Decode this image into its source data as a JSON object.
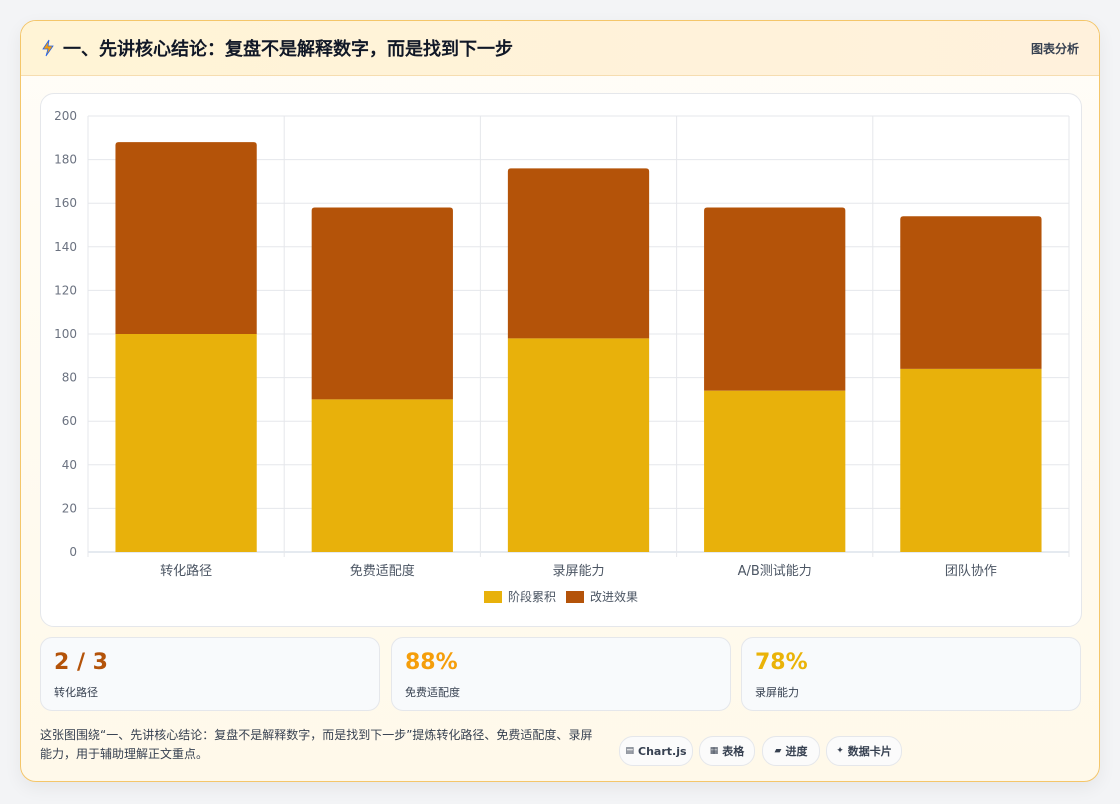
{
  "header": {
    "title": "一、先讲核心结论：复盘不是解释数字，而是找到下一步",
    "tag": "图表分析"
  },
  "chart_data": {
    "type": "bar",
    "stacked": true,
    "categories": [
      "转化路径",
      "免费适配度",
      "录屏能力",
      "A/B测试能力",
      "团队协作"
    ],
    "series": [
      {
        "name": "阶段累积",
        "values": [
          100,
          70,
          98,
          74,
          84
        ],
        "color": "#e8b10b"
      },
      {
        "name": "改进效果",
        "values": [
          88,
          88,
          78,
          84,
          70
        ],
        "color": "#b45309"
      }
    ],
    "ylim": [
      0,
      200
    ],
    "yticks": [
      0,
      20,
      40,
      60,
      80,
      100,
      120,
      140,
      160,
      180,
      200
    ],
    "grid": true,
    "legend": "bottom"
  },
  "stats": [
    {
      "value": "2 / 3",
      "label": "转化路径",
      "color": "#b45309"
    },
    {
      "value": "88%",
      "label": "免费适配度",
      "color": "#f59e0b"
    },
    {
      "value": "78%",
      "label": "录屏能力",
      "color": "#eab308"
    }
  ],
  "description": "这张图围绕“一、先讲核心结论：复盘不是解释数字，而是找到下一步”提炼转化路径、免费适配度、录屏能力，用于辅助理解正文重点。",
  "chips": [
    {
      "icon": "chart-icon",
      "label": "Chart.js"
    },
    {
      "icon": "table-icon",
      "label": "表格"
    },
    {
      "icon": "progress-icon",
      "label": "进度"
    },
    {
      "icon": "card-icon",
      "label": "数据卡片"
    }
  ]
}
